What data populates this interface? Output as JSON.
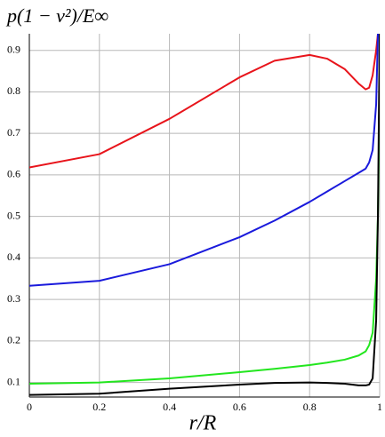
{
  "chart_data": {
    "type": "line",
    "title": "p(1 − ν²)/E∞",
    "x_label": "r/R",
    "x": [
      0,
      0.2,
      0.4,
      0.6,
      0.7,
      0.8,
      0.85,
      0.9,
      0.94,
      0.96,
      0.97,
      0.98,
      0.99,
      0.995,
      1
    ],
    "series": [
      {
        "color": "#e8141b",
        "values": [
          0.618,
          0.65,
          0.735,
          0.835,
          0.875,
          0.889,
          0.88,
          0.855,
          0.82,
          0.806,
          0.81,
          0.84,
          0.9,
          0.94,
          null
        ]
      },
      {
        "color": "#1a1adc",
        "values": [
          0.333,
          0.345,
          0.385,
          0.45,
          0.49,
          0.535,
          0.56,
          0.585,
          0.605,
          0.615,
          0.63,
          0.66,
          0.77,
          0.94,
          null
        ]
      },
      {
        "color": "#22e61e",
        "values": [
          0.097,
          0.1,
          0.11,
          0.125,
          0.133,
          0.142,
          0.148,
          0.155,
          0.165,
          0.175,
          0.19,
          0.22,
          0.35,
          0.5,
          0.78
        ]
      },
      {
        "color": "#000000",
        "values": [
          0.07,
          0.073,
          0.085,
          0.095,
          0.099,
          0.1,
          0.099,
          0.097,
          0.093,
          0.093,
          0.095,
          0.11,
          0.25,
          0.5,
          0.94
        ]
      }
    ],
    "xlim": [
      0,
      1
    ],
    "ylim": [
      0.065,
      0.94
    ],
    "xticks": [
      0,
      0.2,
      0.4,
      0.6,
      0.8,
      1
    ],
    "yticks": [
      0.1,
      0.2,
      0.3,
      0.4,
      0.5,
      0.6,
      0.7,
      0.8,
      0.9
    ],
    "grid": true
  }
}
